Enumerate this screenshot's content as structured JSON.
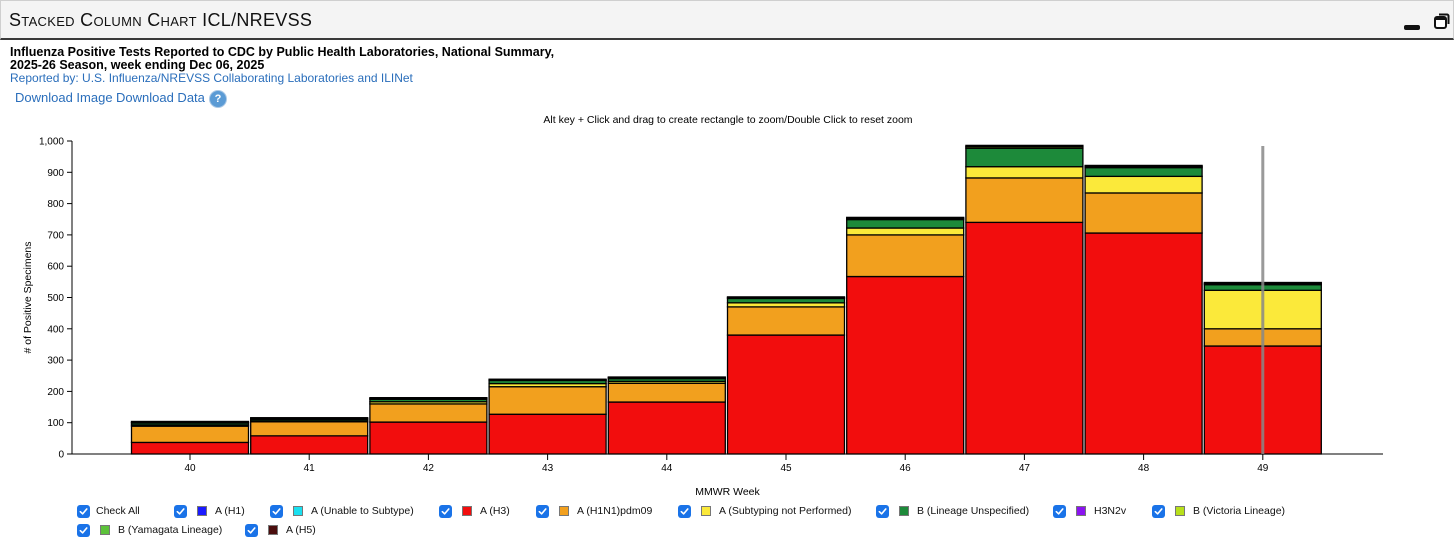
{
  "header": {
    "title": "Stacked Column Chart ICL/NREVSS"
  },
  "chart_header": {
    "title_line1": "Influenza Positive Tests Reported to CDC by Public Health Laboratories, National Summary,",
    "title_line2": "2025-26 Season, week ending Dec 06, 2025",
    "source": "Reported by: U.S. Influenza/NREVSS Collaborating Laboratories and ILINet"
  },
  "toolbar": {
    "download_image": "Download Image",
    "download_data": "Download Data",
    "help": "?"
  },
  "zoom_hint": "Alt key + Click and drag to create rectangle to zoom/Double Click to reset zoom",
  "legend": {
    "check_all": "Check All",
    "items": [
      {
        "label": "A (H1)",
        "color": "#1a1aff"
      },
      {
        "label": "A (Unable to Subtype)",
        "color": "#19e0f0"
      },
      {
        "label": "A (H3)",
        "color": "#f20d0d"
      },
      {
        "label": "A (H1N1)pdm09",
        "color": "#f2a01e"
      },
      {
        "label": "A (Subtyping not Performed)",
        "color": "#fbe93a"
      },
      {
        "label": "B (Lineage Unspecified)",
        "color": "#1d8a3a"
      },
      {
        "label": "H3N2v",
        "color": "#8a13f0"
      },
      {
        "label": "B (Victoria Lineage)",
        "color": "#b8e01a"
      },
      {
        "label": "B (Yamagata Lineage)",
        "color": "#5cc23a"
      },
      {
        "label": "A (H5)",
        "color": "#4a0d0d"
      }
    ]
  },
  "chart_data": {
    "type": "bar",
    "stacked": true,
    "xlabel": "MMWR Week",
    "ylabel": "# of Positive Specimens",
    "ylim": [
      0,
      1000
    ],
    "yticks": [
      0,
      100,
      200,
      300,
      400,
      500,
      600,
      700,
      800,
      900,
      1000
    ],
    "ytick_labels": [
      "0",
      "100",
      "200",
      "300",
      "400",
      "500",
      "600",
      "700",
      "800",
      "900",
      "1,000"
    ],
    "categories": [
      "40",
      "41",
      "42",
      "43",
      "44",
      "45",
      "46",
      "47",
      "48",
      "49"
    ],
    "series": [
      {
        "name": "A (H3)",
        "color": "#f20d0d",
        "values": [
          37,
          58,
          102,
          127,
          166,
          380,
          567,
          740,
          706,
          345
        ]
      },
      {
        "name": "A (H1N1)pdm09",
        "color": "#f2a01e",
        "values": [
          52,
          45,
          58,
          88,
          60,
          90,
          133,
          142,
          128,
          55
        ]
      },
      {
        "name": "A (Subtyping not Performed)",
        "color": "#fbe93a",
        "values": [
          4,
          3,
          7,
          10,
          6,
          13,
          22,
          36,
          53,
          123
        ]
      },
      {
        "name": "B (Lineage Unspecified)",
        "color": "#1d8a3a",
        "values": [
          6,
          5,
          8,
          10,
          9,
          14,
          27,
          59,
          28,
          18
        ]
      },
      {
        "name": "A (H1)",
        "color": "#1a1aff",
        "values": [
          0,
          0,
          0,
          0,
          0,
          0,
          0,
          0,
          0,
          0
        ]
      },
      {
        "name": "A (Unable to Subtype)",
        "color": "#19e0f0",
        "values": [
          0,
          0,
          0,
          0,
          0,
          0,
          0,
          0,
          0,
          0
        ]
      },
      {
        "name": "H3N2v",
        "color": "#8a13f0",
        "values": [
          0,
          0,
          0,
          0,
          0,
          0,
          0,
          0,
          0,
          0
        ]
      },
      {
        "name": "B (Victoria Lineage)",
        "color": "#b8e01a",
        "values": [
          2,
          2,
          2,
          2,
          3,
          3,
          4,
          5,
          4,
          4
        ]
      },
      {
        "name": "B (Yamagata Lineage)",
        "color": "#5cc23a",
        "values": [
          0,
          0,
          0,
          0,
          0,
          0,
          0,
          0,
          0,
          0
        ]
      },
      {
        "name": "A (H5)",
        "color": "#4a0d0d",
        "values": [
          3,
          3,
          3,
          2,
          2,
          2,
          3,
          4,
          3,
          3
        ]
      }
    ],
    "highlight_category": "49",
    "grid": false,
    "legend_position": "bottom"
  }
}
